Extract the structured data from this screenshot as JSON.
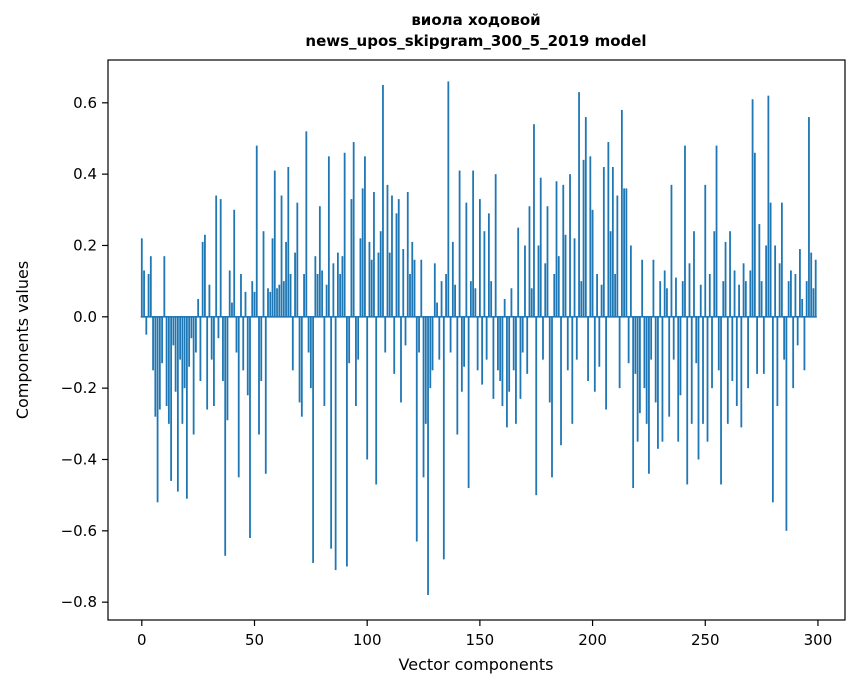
{
  "figure": {
    "title_line1": "виола ходовой",
    "title_line2": "news_upos_skipgram_300_5_2019 model"
  },
  "chart_data": {
    "type": "bar",
    "title": "виола ходовой\nnews_upos_skipgram_300_5_2019 model",
    "xlabel": "Vector components",
    "ylabel": "Components values",
    "xlim": [
      -15,
      312
    ],
    "ylim": [
      -0.85,
      0.72
    ],
    "xticks": [
      0,
      50,
      100,
      150,
      200,
      250,
      300
    ],
    "yticks": [
      0.6,
      0.4,
      0.2,
      0.0,
      -0.2,
      -0.4,
      -0.6,
      -0.8
    ],
    "bar_color": "#1f77b4",
    "grid": false,
    "legend": null,
    "values": [
      0.22,
      0.13,
      -0.05,
      0.12,
      0.17,
      -0.15,
      -0.28,
      -0.52,
      -0.26,
      -0.13,
      0.17,
      -0.25,
      -0.3,
      -0.46,
      -0.08,
      -0.21,
      -0.49,
      -0.12,
      -0.3,
      -0.2,
      -0.51,
      -0.14,
      -0.06,
      -0.33,
      -0.1,
      0.05,
      -0.18,
      0.21,
      0.23,
      -0.26,
      0.09,
      -0.12,
      -0.25,
      0.34,
      -0.06,
      0.33,
      -0.18,
      -0.67,
      -0.29,
      0.13,
      0.04,
      0.3,
      -0.1,
      -0.45,
      0.12,
      -0.15,
      0.07,
      -0.22,
      -0.62,
      0.1,
      0.07,
      0.48,
      -0.33,
      -0.18,
      0.24,
      -0.44,
      0.08,
      0.07,
      0.22,
      0.41,
      0.08,
      0.09,
      0.34,
      0.1,
      0.21,
      0.42,
      0.12,
      -0.15,
      0.18,
      0.32,
      -0.24,
      -0.28,
      0.12,
      0.52,
      -0.1,
      -0.2,
      -0.69,
      0.17,
      0.12,
      0.31,
      0.13,
      -0.25,
      0.09,
      0.45,
      -0.65,
      0.15,
      -0.71,
      0.18,
      0.12,
      0.17,
      0.46,
      -0.7,
      -0.13,
      0.33,
      0.49,
      -0.25,
      -0.12,
      0.22,
      0.36,
      0.45,
      -0.4,
      0.21,
      0.16,
      0.35,
      -0.47,
      0.18,
      0.24,
      0.65,
      -0.1,
      0.37,
      0.18,
      0.34,
      -0.16,
      0.29,
      0.33,
      -0.24,
      0.19,
      -0.08,
      0.35,
      0.12,
      0.21,
      0.16,
      -0.63,
      -0.1,
      0.16,
      -0.45,
      -0.3,
      -0.78,
      -0.2,
      -0.15,
      0.15,
      0.04,
      -0.12,
      0.1,
      -0.68,
      0.12,
      0.66,
      -0.1,
      0.21,
      0.09,
      -0.33,
      0.41,
      -0.21,
      -0.14,
      0.32,
      -0.48,
      0.1,
      0.41,
      0.08,
      -0.15,
      0.33,
      -0.19,
      0.24,
      -0.12,
      0.29,
      0.1,
      -0.23,
      0.4,
      -0.15,
      -0.18,
      -0.25,
      0.05,
      -0.31,
      -0.21,
      0.08,
      -0.15,
      -0.3,
      0.25,
      -0.23,
      -0.1,
      0.2,
      -0.16,
      0.31,
      0.08,
      0.54,
      -0.5,
      0.2,
      0.39,
      -0.12,
      0.15,
      0.31,
      -0.24,
      -0.45,
      0.12,
      0.38,
      0.17,
      -0.36,
      0.37,
      0.23,
      -0.15,
      0.4,
      -0.3,
      0.22,
      -0.12,
      0.63,
      0.1,
      0.44,
      0.56,
      -0.18,
      0.45,
      0.3,
      -0.21,
      0.12,
      -0.14,
      0.09,
      0.42,
      -0.26,
      0.49,
      0.24,
      0.42,
      0.12,
      0.34,
      -0.2,
      0.58,
      0.36,
      0.36,
      -0.13,
      0.2,
      -0.48,
      -0.16,
      -0.35,
      -0.27,
      0.16,
      -0.2,
      -0.3,
      -0.44,
      -0.12,
      0.16,
      -0.24,
      -0.37,
      0.1,
      -0.35,
      0.13,
      0.08,
      -0.28,
      0.37,
      -0.12,
      0.11,
      -0.35,
      -0.22,
      0.1,
      0.48,
      -0.47,
      0.15,
      -0.3,
      0.24,
      -0.13,
      -0.4,
      0.09,
      -0.3,
      0.37,
      -0.35,
      0.12,
      -0.2,
      0.24,
      0.48,
      -0.15,
      -0.47,
      0.1,
      0.21,
      -0.3,
      0.24,
      -0.18,
      0.13,
      -0.25,
      0.09,
      -0.31,
      0.15,
      0.1,
      -0.2,
      0.13,
      0.61,
      0.46,
      -0.16,
      0.26,
      0.1,
      -0.16,
      0.2,
      0.62,
      0.32,
      -0.52,
      0.2,
      -0.25,
      0.15,
      0.32,
      -0.12,
      -0.6,
      0.1,
      0.13,
      -0.2,
      0.12,
      -0.08,
      0.19,
      0.05,
      -0.15,
      0.1,
      0.56,
      0.18,
      0.08,
      0.16
    ]
  }
}
